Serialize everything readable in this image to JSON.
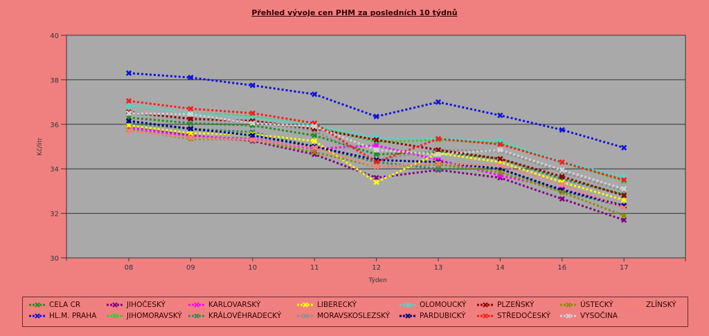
{
  "chart_data": {
    "type": "line",
    "title": "Přehled vývoje cen PHM za posledních 10 týdnů",
    "xlabel": "Týden",
    "ylabel": "Kč/litr",
    "ylim": [
      30,
      40
    ],
    "yticks": [
      "30",
      "32",
      "34",
      "36",
      "38",
      "40"
    ],
    "categories": [
      "08",
      "09",
      "10",
      "11",
      "12",
      "13",
      "14",
      "16",
      "17"
    ],
    "grid": true,
    "legend_position": "bottom",
    "plot_background": "#a9a9a9",
    "series": [
      {
        "name": "CELA CR",
        "color": "#228b22",
        "values": [
          36.3,
          36.05,
          35.95,
          35.5,
          34.65,
          34.75,
          34.45,
          33.55,
          32.85
        ]
      },
      {
        "name": "HL.M. PRAHA",
        "color": "#1010e0",
        "values": [
          38.3,
          38.1,
          37.75,
          37.35,
          36.35,
          37.0,
          36.4,
          35.75,
          34.95
        ]
      },
      {
        "name": "JIHOČESKÝ",
        "color": "#800080",
        "values": [
          35.95,
          35.5,
          35.25,
          34.65,
          33.6,
          33.95,
          33.6,
          32.65,
          31.7
        ]
      },
      {
        "name": "JIHOMORAVSKÝ",
        "color": "#32cd32",
        "values": [
          36.85,
          36.5,
          36.35,
          35.95,
          35.2,
          35.3,
          35.15,
          34.3,
          33.45
        ]
      },
      {
        "name": "KARLOVARSKÝ",
        "color": "#ff00ff",
        "values": [
          35.85,
          35.45,
          35.35,
          34.9,
          35.05,
          34.4,
          33.7,
          33.1,
          32.3
        ]
      },
      {
        "name": "KRÁLOVÉHRADECKÝ",
        "color": "#2e8b57",
        "values": [
          36.05,
          35.8,
          35.65,
          35.0,
          34.3,
          34.0,
          34.0,
          33.0,
          32.3
        ]
      },
      {
        "name": "LIBERECKÝ",
        "color": "#ffff00",
        "values": [
          35.95,
          35.6,
          35.55,
          35.25,
          33.4,
          34.7,
          34.3,
          33.4,
          32.6
        ]
      },
      {
        "name": "MORAVSKOSLEZSKÝ",
        "color": "#909090",
        "values": [
          36.5,
          36.2,
          36.1,
          35.7,
          34.4,
          34.85,
          34.8,
          33.85,
          33.0
        ]
      },
      {
        "name": "OLOMOUCKÝ",
        "color": "#40e0d0",
        "values": [
          36.85,
          36.5,
          36.3,
          35.95,
          35.4,
          35.35,
          35.25,
          34.3,
          33.65
        ]
      },
      {
        "name": "PARDUBICKÝ",
        "color": "#000080",
        "values": [
          36.15,
          35.8,
          35.5,
          35.0,
          34.4,
          34.3,
          34.0,
          33.05,
          32.35
        ]
      },
      {
        "name": "PLZEŇSKÝ",
        "color": "#8b0000",
        "values": [
          36.55,
          36.25,
          36.15,
          35.8,
          35.3,
          34.85,
          34.45,
          33.65,
          32.8
        ]
      },
      {
        "name": "STŘEDOČESKÝ",
        "color": "#ff1a1a",
        "values": [
          37.05,
          36.7,
          36.5,
          36.05,
          34.3,
          35.35,
          35.1,
          34.3,
          33.5
        ]
      },
      {
        "name": "ÚSTECKÝ",
        "color": "#8b8b00",
        "values": [
          35.75,
          35.35,
          35.3,
          34.75,
          34.1,
          34.2,
          33.85,
          32.95,
          31.9
        ]
      },
      {
        "name": "VYSOČINA",
        "color": "#d3d3d3",
        "values": [
          36.5,
          36.45,
          36.05,
          35.9,
          34.85,
          34.65,
          34.85,
          33.95,
          33.1
        ]
      },
      {
        "name": "ZLÍNSKÝ",
        "color": "#fa8072",
        "values": [
          35.7,
          35.4,
          35.3,
          34.95,
          34.1,
          34.25,
          34.15,
          33.3,
          32.25
        ]
      }
    ]
  }
}
